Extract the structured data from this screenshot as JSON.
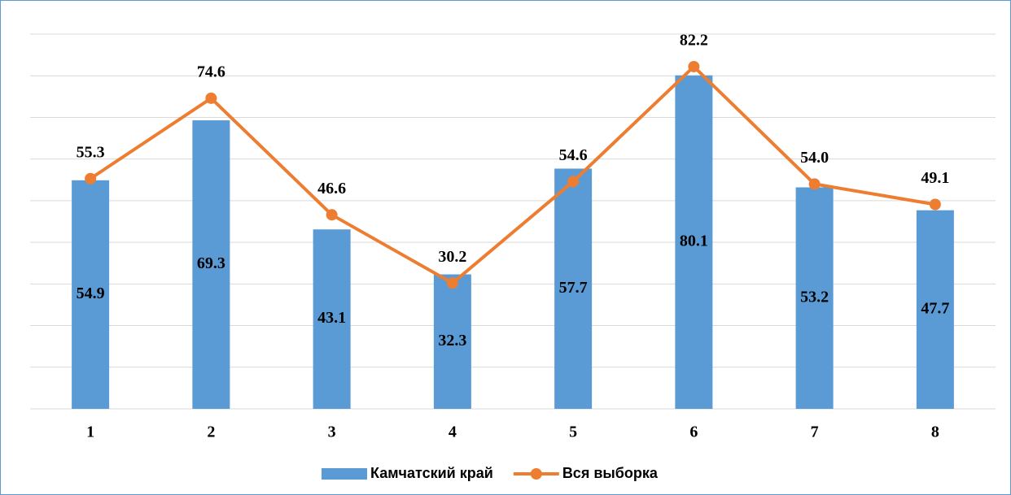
{
  "chart_data": {
    "type": "bar_line",
    "categories": [
      "1",
      "2",
      "3",
      "4",
      "5",
      "6",
      "7",
      "8"
    ],
    "series": [
      {
        "name": "Камчатский край",
        "type": "bar",
        "color": "#5b9bd5",
        "values": [
          54.9,
          69.3,
          43.1,
          32.3,
          57.7,
          80.1,
          53.2,
          47.7
        ]
      },
      {
        "name": "Вся выборка",
        "type": "line",
        "color": "#ed7d31",
        "values": [
          55.3,
          74.6,
          46.6,
          30.2,
          54.6,
          82.2,
          54.0,
          49.1
        ],
        "value_labels": [
          "55.3",
          "74.6",
          "46.6",
          "30.2",
          "54.6",
          "82.2",
          "54.0",
          "49.1"
        ]
      }
    ],
    "ylim": [
      0,
      90
    ],
    "yticks": [
      0,
      10,
      20,
      30,
      40,
      50,
      60,
      70,
      80,
      90
    ],
    "grid": true,
    "legend": "bottom"
  }
}
